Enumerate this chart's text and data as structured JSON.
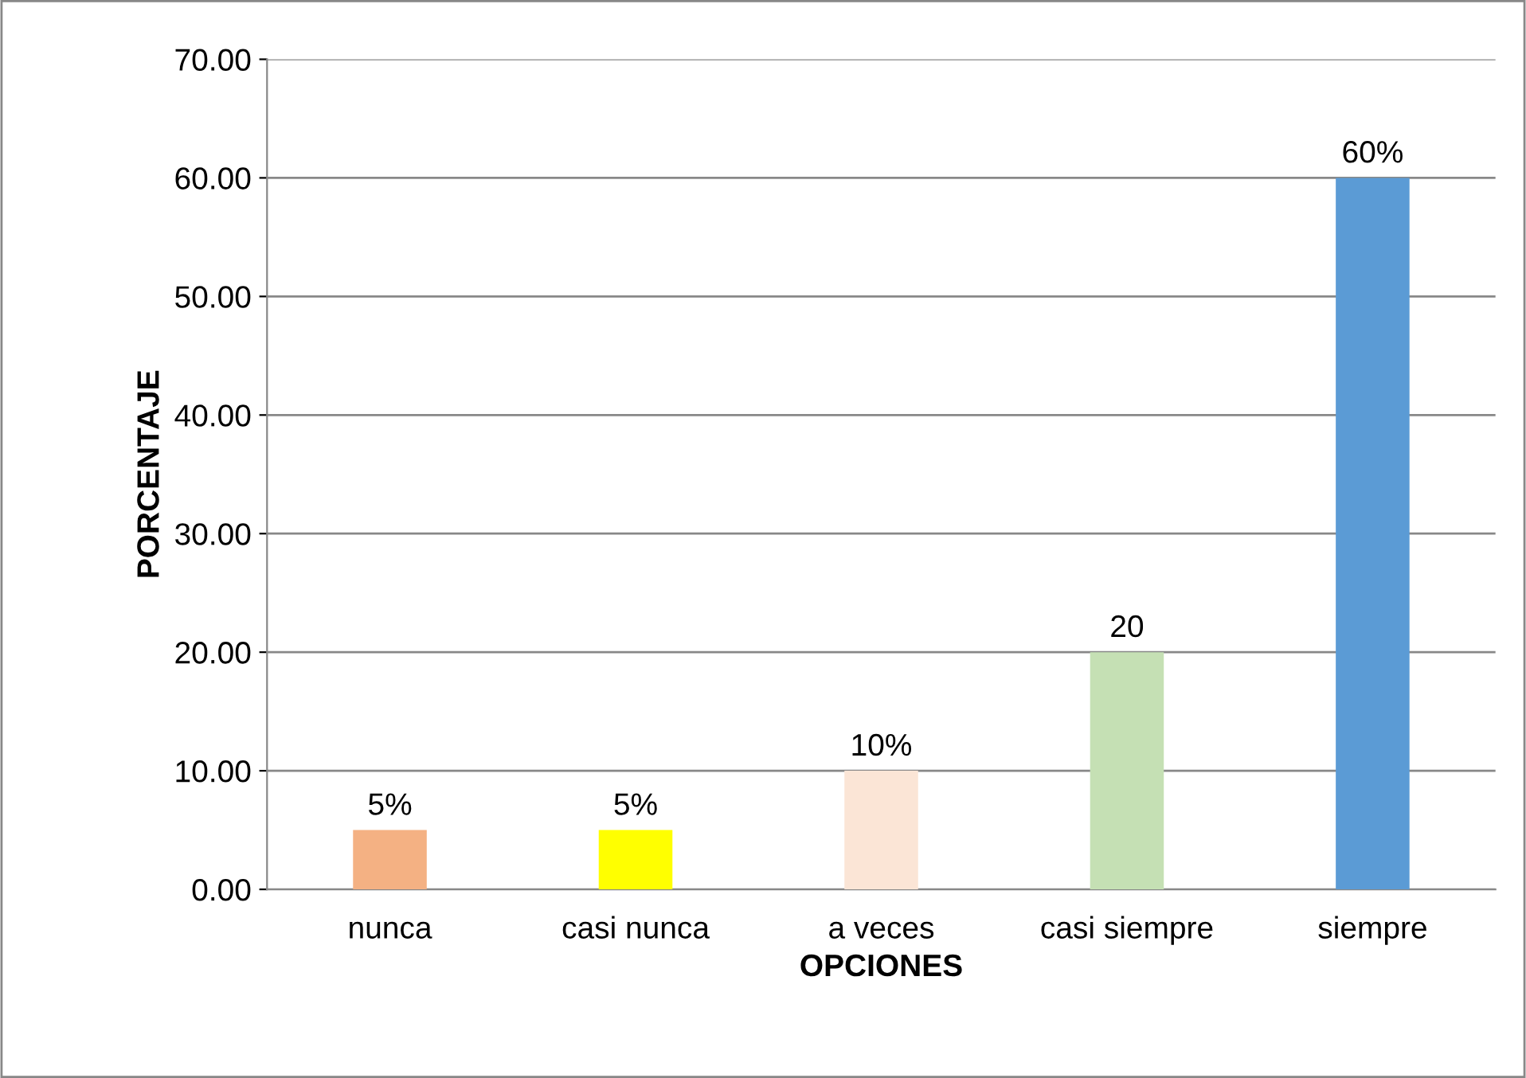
{
  "chart_data": {
    "type": "bar",
    "xlabel": "OPCIONES",
    "ylabel": "PORCENTAJE",
    "categories": [
      "nunca",
      "casi nunca",
      "a veces",
      "casi siempre",
      "siempre"
    ],
    "values": [
      5,
      5,
      10,
      20,
      60
    ],
    "colors": [
      "#f4b183",
      "#ffff00",
      "#fbe5d6",
      "#c5e0b4",
      "#5b9bd5"
    ],
    "value_labels": [
      "5%",
      "5%",
      "10%",
      "20",
      "60%"
    ],
    "ylim": [
      0,
      70
    ],
    "yticks": [
      {
        "value": 0,
        "label": "0.00"
      },
      {
        "value": 10,
        "label": "10.00"
      },
      {
        "value": 20,
        "label": "20.00"
      },
      {
        "value": 30,
        "label": "30.00"
      },
      {
        "value": 40,
        "label": "40.00"
      },
      {
        "value": 50,
        "label": "50.00"
      },
      {
        "value": 60,
        "label": "60.00"
      },
      {
        "value": 70,
        "label": "70.00"
      }
    ],
    "grid": "y"
  }
}
